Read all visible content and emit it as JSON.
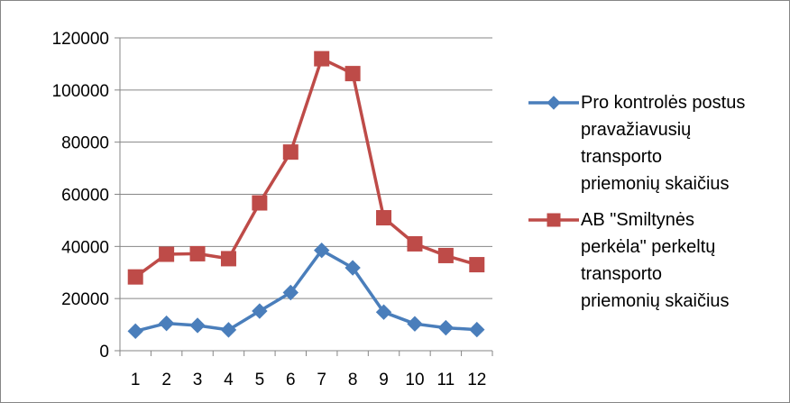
{
  "chart_data": {
    "type": "line",
    "categories": [
      "1",
      "2",
      "3",
      "4",
      "5",
      "6",
      "7",
      "8",
      "9",
      "10",
      "11",
      "12"
    ],
    "ylim": [
      0,
      120000
    ],
    "y_ticks": [
      0,
      20000,
      40000,
      60000,
      80000,
      100000,
      120000
    ],
    "y_tick_labels": [
      "0",
      "20000",
      "40000",
      "60000",
      "80000",
      "100000",
      "120000"
    ],
    "grid": "horizontal",
    "legend_position": "right",
    "series": [
      {
        "name": "Pro kontrolės postus\npravažiavusių\ntransporto\npriemonių skaičius",
        "color": "#4a7ebb",
        "marker": "diamond",
        "values": [
          7500,
          10500,
          9700,
          8000,
          15200,
          22300,
          38500,
          31800,
          14800,
          10300,
          8800,
          8100
        ]
      },
      {
        "name": "AB \"Smiltynės\nperkėla\" perkeltų\ntransporto\npriemonių skaičius",
        "color": "#be4b48",
        "marker": "square",
        "values": [
          28300,
          37000,
          37200,
          35300,
          56700,
          76200,
          112000,
          106300,
          51000,
          41000,
          36500,
          33000
        ]
      }
    ]
  }
}
